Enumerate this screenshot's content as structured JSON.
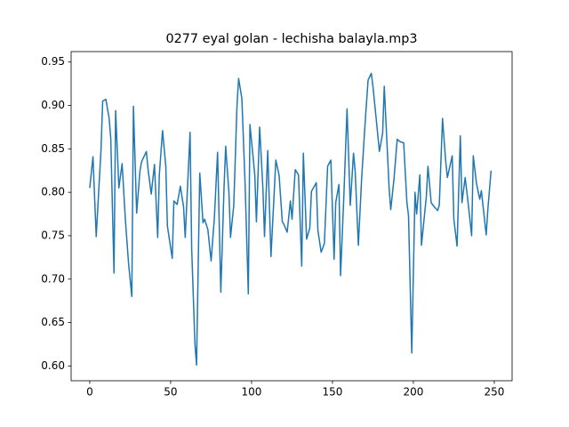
{
  "chart_data": {
    "type": "line",
    "title": "0277 eyal golan - lechisha balayla.mp3",
    "x": [
      0,
      2,
      4,
      7,
      8,
      10,
      12,
      13,
      15,
      16,
      18,
      20,
      22,
      24,
      26,
      27,
      29,
      31,
      32,
      35,
      36,
      38,
      40,
      42,
      43,
      45,
      47,
      48,
      51,
      52,
      54,
      56,
      58,
      59,
      62,
      63,
      65,
      66,
      68,
      70,
      71,
      73,
      75,
      77,
      79,
      81,
      83,
      84,
      86,
      87,
      89,
      91,
      92,
      94,
      96,
      98,
      99,
      102,
      103,
      105,
      107,
      108,
      110,
      112,
      114,
      115,
      117,
      119,
      120,
      122,
      124,
      125,
      127,
      129,
      131,
      132,
      134,
      136,
      137,
      140,
      141,
      143,
      145,
      147,
      149,
      151,
      152,
      154,
      155,
      157,
      159,
      161,
      163,
      164,
      166,
      168,
      170,
      172,
      174,
      175,
      177,
      179,
      181,
      182,
      185,
      186,
      188,
      190,
      192,
      194,
      196,
      197,
      199,
      201,
      202,
      204,
      205,
      208,
      209,
      211,
      213,
      215,
      216,
      218,
      220,
      221,
      224,
      225,
      227,
      229,
      230,
      232,
      234,
      236,
      237,
      239,
      241,
      242,
      245,
      246,
      248
    ],
    "values": [
      0.805,
      0.841,
      0.749,
      0.85,
      0.905,
      0.907,
      0.885,
      0.862,
      0.707,
      0.894,
      0.805,
      0.833,
      0.769,
      0.718,
      0.68,
      0.899,
      0.776,
      0.824,
      0.835,
      0.847,
      0.827,
      0.798,
      0.832,
      0.748,
      0.82,
      0.871,
      0.83,
      0.761,
      0.724,
      0.79,
      0.786,
      0.807,
      0.783,
      0.748,
      0.869,
      0.735,
      0.626,
      0.601,
      0.822,
      0.765,
      0.769,
      0.757,
      0.721,
      0.77,
      0.846,
      0.685,
      0.806,
      0.853,
      0.8,
      0.748,
      0.785,
      0.9,
      0.931,
      0.908,
      0.81,
      0.683,
      0.878,
      0.82,
      0.766,
      0.875,
      0.805,
      0.749,
      0.848,
      0.726,
      0.8,
      0.837,
      0.82,
      0.766,
      0.763,
      0.754,
      0.79,
      0.769,
      0.826,
      0.82,
      0.715,
      0.845,
      0.746,
      0.759,
      0.801,
      0.811,
      0.756,
      0.731,
      0.741,
      0.83,
      0.837,
      0.723,
      0.788,
      0.809,
      0.704,
      0.794,
      0.896,
      0.785,
      0.845,
      0.825,
      0.739,
      0.815,
      0.875,
      0.929,
      0.937,
      0.922,
      0.885,
      0.847,
      0.868,
      0.922,
      0.805,
      0.78,
      0.815,
      0.861,
      0.858,
      0.857,
      0.788,
      0.773,
      0.615,
      0.8,
      0.775,
      0.82,
      0.739,
      0.795,
      0.83,
      0.788,
      0.783,
      0.779,
      0.785,
      0.885,
      0.835,
      0.817,
      0.842,
      0.769,
      0.738,
      0.865,
      0.788,
      0.817,
      0.785,
      0.75,
      0.842,
      0.81,
      0.792,
      0.802,
      0.751,
      0.78,
      0.825
    ],
    "color": "#1f77b4",
    "xlim": [
      -11.5,
      261
    ],
    "ylim": [
      0.583,
      0.962
    ],
    "xticks": [
      0,
      50,
      100,
      150,
      200,
      250
    ],
    "yticks": [
      {
        "value": 0.6,
        "label": "0.60"
      },
      0.65,
      {
        "value": 0.7,
        "label": "0.70"
      },
      0.75,
      {
        "value": 0.8,
        "label": "0.80"
      },
      0.85,
      {
        "value": 0.9,
        "label": "0.90"
      },
      0.95
    ]
  }
}
